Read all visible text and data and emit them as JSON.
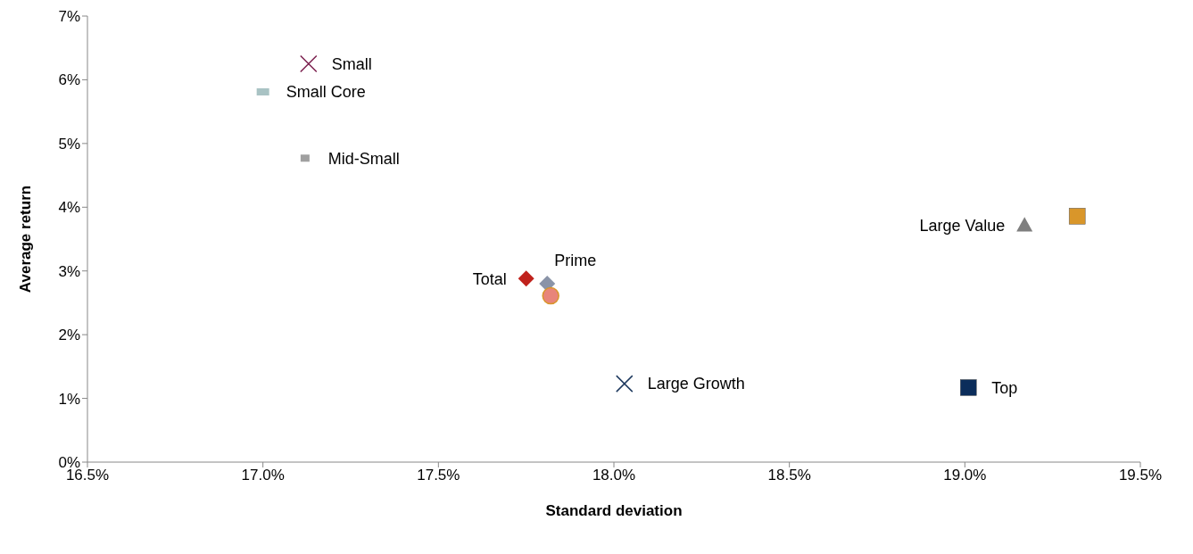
{
  "chart_data": {
    "type": "scatter",
    "xlabel": "Standard deviation",
    "ylabel": "Average return",
    "xlim": [
      16.5,
      19.5
    ],
    "ylim": [
      0,
      7
    ],
    "xticks": [
      {
        "value": 16.5,
        "label": "16.5%"
      },
      {
        "value": 17.0,
        "label": "17.0%"
      },
      {
        "value": 17.5,
        "label": "17.5%"
      },
      {
        "value": 18.0,
        "label": "18.0%"
      },
      {
        "value": 18.5,
        "label": "18.5%"
      },
      {
        "value": 19.0,
        "label": "19.0%"
      },
      {
        "value": 19.5,
        "label": "19.5%"
      }
    ],
    "yticks": [
      {
        "value": 0,
        "label": "0%"
      },
      {
        "value": 1,
        "label": "1%"
      },
      {
        "value": 2,
        "label": "2%"
      },
      {
        "value": 3,
        "label": "3%"
      },
      {
        "value": 4,
        "label": "4%"
      },
      {
        "value": 5,
        "label": "5%"
      },
      {
        "value": 6,
        "label": "6%"
      },
      {
        "value": 7,
        "label": "7%"
      }
    ],
    "grid": false,
    "legend": false,
    "series": [
      {
        "name": "Small",
        "color": "#7b1f4e",
        "marker": "cross",
        "x": [
          17.13
        ],
        "values": [
          6.25
        ]
      },
      {
        "name": "Small Core",
        "color": "#a9c3c4",
        "marker": "square",
        "x": [
          17.0
        ],
        "values": [
          5.81
        ]
      },
      {
        "name": "Mid-Small",
        "color": "#a0a0a0",
        "marker": "square",
        "x": [
          17.12
        ],
        "values": [
          4.77
        ]
      },
      {
        "name": "Total",
        "color": "#c0221c",
        "marker": "diamond",
        "x": [
          17.75
        ],
        "values": [
          2.88
        ]
      },
      {
        "name": "Prime",
        "color": "#8a94a8",
        "marker": "diamond",
        "x": [
          17.81
        ],
        "values": [
          2.8
        ]
      },
      {
        "color": "#e8857a",
        "marker": "circle",
        "x": [
          17.82
        ],
        "values": [
          2.61
        ]
      },
      {
        "name": "Large Growth",
        "color": "#1f3a5f",
        "marker": "cross",
        "x": [
          18.03
        ],
        "values": [
          1.23
        ]
      },
      {
        "name": "Top",
        "color": "#0b2d5b",
        "marker": "square",
        "x": [
          19.01
        ],
        "values": [
          1.17
        ]
      },
      {
        "name": "Large Value",
        "color": "#7f7f7f",
        "marker": "triangle",
        "x": [
          19.17
        ],
        "values": [
          3.72
        ]
      },
      {
        "color": "#d9962a",
        "marker": "square",
        "x": [
          19.32
        ],
        "values": [
          3.86
        ]
      }
    ]
  }
}
